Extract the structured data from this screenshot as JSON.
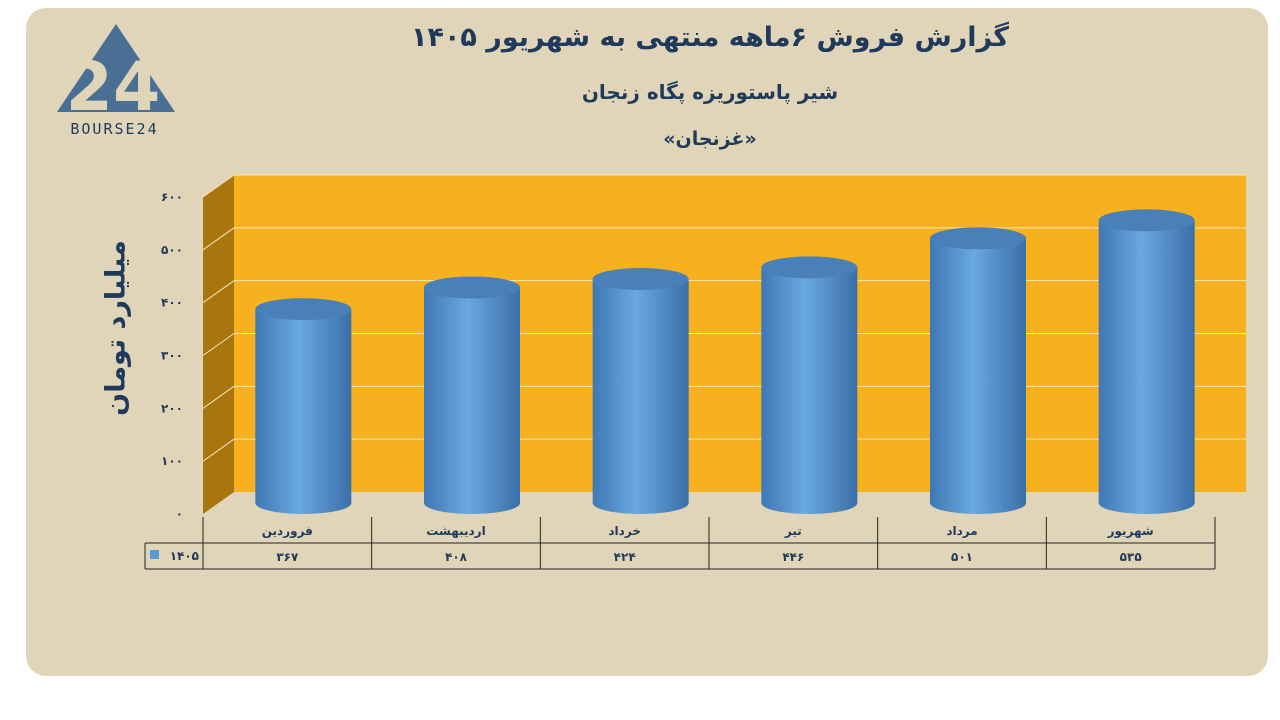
{
  "title": "گزارش  فروش  ۶ماهه منتهی به شهریور ۱۴۰۵",
  "subtitle": "شیر پاستوریزه پگاه زنجان",
  "ticker": "«غزنجان»",
  "logo": {
    "text": "BOURSE24",
    "mark": "24"
  },
  "colors": {
    "card": "#e0d5b9",
    "plot": "#f7b11e",
    "side": "#a8760c",
    "bar": "#5b9bd5",
    "text": "#1f3a5a"
  },
  "chart_data": {
    "type": "bar",
    "ylabel": "میلیارد تومان",
    "ylim": [
      0,
      600
    ],
    "yticks": [
      0,
      100,
      200,
      300,
      400,
      500,
      600
    ],
    "ytick_labels": [
      "۰",
      "۱۰۰",
      "۲۰۰",
      "۳۰۰",
      "۴۰۰",
      "۵۰۰",
      "۶۰۰"
    ],
    "categories": [
      "فروردین",
      "اردیبهشت",
      "خرداد",
      "تیر",
      "مرداد",
      "شهریور"
    ],
    "series": [
      {
        "name": "۱۴۰۵",
        "values": [
          367,
          408,
          424,
          446,
          501,
          535
        ],
        "labels": [
          "۳۶۷",
          "۴۰۸",
          "۴۲۴",
          "۴۴۶",
          "۵۰۱",
          "۵۳۵"
        ]
      }
    ],
    "legend": "data-table-left",
    "grid": true
  }
}
